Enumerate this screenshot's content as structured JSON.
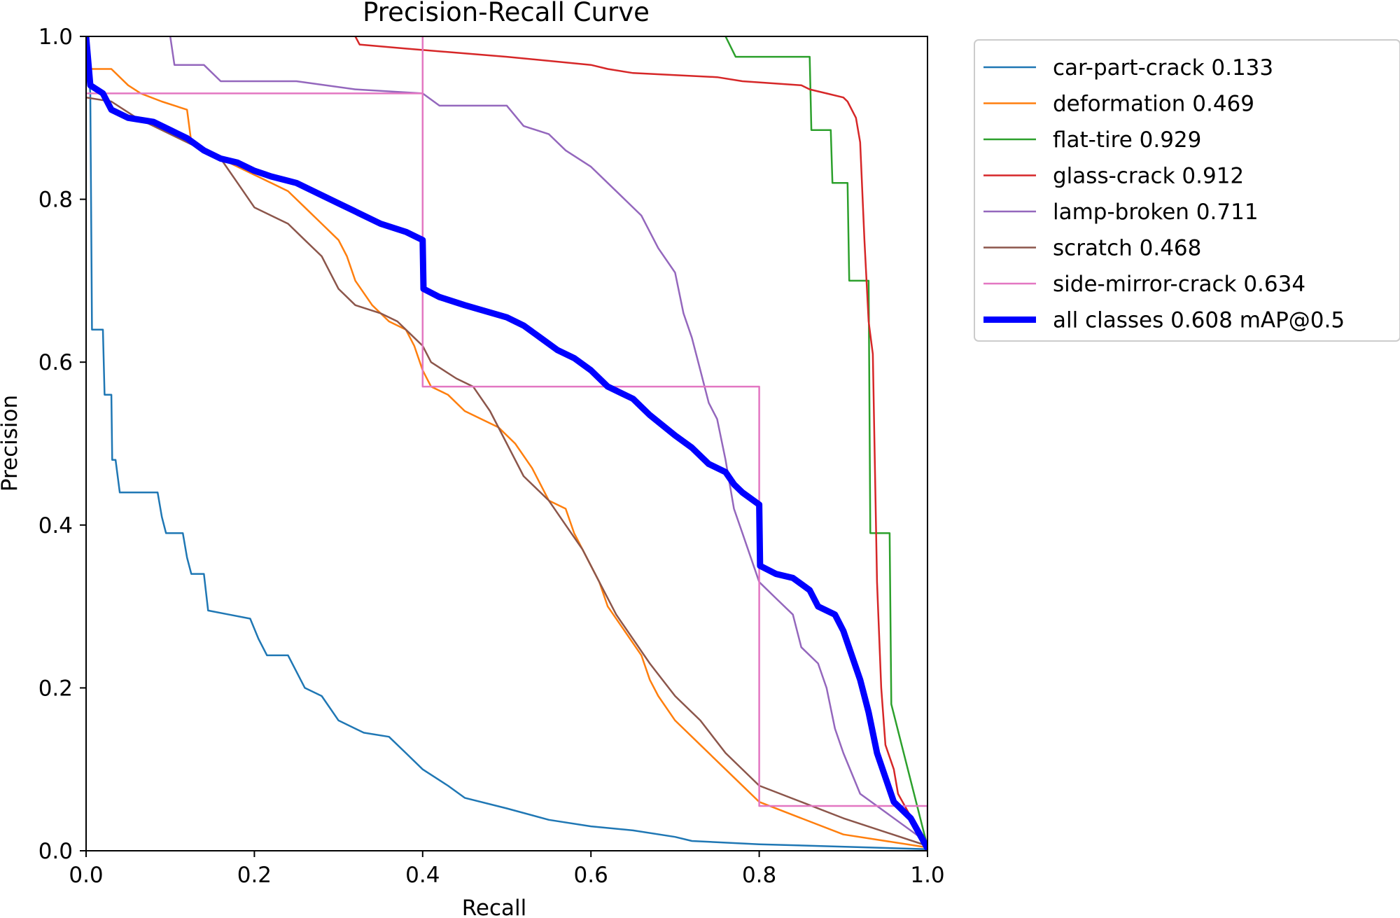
{
  "chart_data": {
    "type": "line",
    "title": "Precision-Recall Curve",
    "xlabel": "Recall",
    "ylabel": "Precision",
    "xlim": [
      0,
      1
    ],
    "ylim": [
      0,
      1
    ],
    "xticks": [
      "0.0",
      "0.2",
      "0.4",
      "0.6",
      "0.8",
      "1.0"
    ],
    "yticks": [
      "0.0",
      "0.2",
      "0.4",
      "0.6",
      "0.8",
      "1.0"
    ],
    "grid": false,
    "legend_position": "outside-top-right",
    "series": [
      {
        "name": "car-part-crack",
        "legend_label": "car-part-crack 0.133",
        "color": "#1f77b4",
        "width": "thin",
        "points": [
          [
            0.0,
            1.0
          ],
          [
            0.005,
            0.93
          ],
          [
            0.007,
            0.64
          ],
          [
            0.02,
            0.64
          ],
          [
            0.022,
            0.56
          ],
          [
            0.03,
            0.56
          ],
          [
            0.031,
            0.48
          ],
          [
            0.035,
            0.48
          ],
          [
            0.04,
            0.44
          ],
          [
            0.085,
            0.44
          ],
          [
            0.09,
            0.41
          ],
          [
            0.095,
            0.39
          ],
          [
            0.115,
            0.39
          ],
          [
            0.12,
            0.36
          ],
          [
            0.125,
            0.34
          ],
          [
            0.14,
            0.34
          ],
          [
            0.145,
            0.295
          ],
          [
            0.17,
            0.29
          ],
          [
            0.195,
            0.285
          ],
          [
            0.205,
            0.26
          ],
          [
            0.215,
            0.24
          ],
          [
            0.24,
            0.24
          ],
          [
            0.26,
            0.2
          ],
          [
            0.28,
            0.19
          ],
          [
            0.3,
            0.16
          ],
          [
            0.33,
            0.145
          ],
          [
            0.36,
            0.14
          ],
          [
            0.38,
            0.12
          ],
          [
            0.4,
            0.1
          ],
          [
            0.43,
            0.08
          ],
          [
            0.45,
            0.065
          ],
          [
            0.5,
            0.052
          ],
          [
            0.55,
            0.038
          ],
          [
            0.6,
            0.03
          ],
          [
            0.65,
            0.025
          ],
          [
            0.7,
            0.017
          ],
          [
            0.72,
            0.012
          ],
          [
            0.8,
            0.008
          ],
          [
            1.0,
            0.002
          ]
        ]
      },
      {
        "name": "deformation",
        "legend_label": "deformation 0.469",
        "color": "#ff7f0e",
        "width": "thin",
        "points": [
          [
            0.0,
            0.96
          ],
          [
            0.03,
            0.96
          ],
          [
            0.05,
            0.94
          ],
          [
            0.065,
            0.93
          ],
          [
            0.09,
            0.92
          ],
          [
            0.12,
            0.91
          ],
          [
            0.125,
            0.87
          ],
          [
            0.14,
            0.86
          ],
          [
            0.18,
            0.84
          ],
          [
            0.2,
            0.83
          ],
          [
            0.22,
            0.82
          ],
          [
            0.24,
            0.81
          ],
          [
            0.26,
            0.79
          ],
          [
            0.28,
            0.77
          ],
          [
            0.3,
            0.75
          ],
          [
            0.31,
            0.73
          ],
          [
            0.32,
            0.7
          ],
          [
            0.34,
            0.67
          ],
          [
            0.36,
            0.65
          ],
          [
            0.38,
            0.64
          ],
          [
            0.39,
            0.62
          ],
          [
            0.4,
            0.59
          ],
          [
            0.41,
            0.57
          ],
          [
            0.43,
            0.56
          ],
          [
            0.45,
            0.54
          ],
          [
            0.47,
            0.53
          ],
          [
            0.49,
            0.52
          ],
          [
            0.51,
            0.5
          ],
          [
            0.53,
            0.47
          ],
          [
            0.55,
            0.43
          ],
          [
            0.57,
            0.42
          ],
          [
            0.58,
            0.39
          ],
          [
            0.6,
            0.35
          ],
          [
            0.61,
            0.33
          ],
          [
            0.62,
            0.3
          ],
          [
            0.64,
            0.27
          ],
          [
            0.66,
            0.24
          ],
          [
            0.67,
            0.21
          ],
          [
            0.68,
            0.19
          ],
          [
            0.7,
            0.16
          ],
          [
            0.73,
            0.13
          ],
          [
            0.76,
            0.1
          ],
          [
            0.8,
            0.06
          ],
          [
            0.85,
            0.04
          ],
          [
            0.9,
            0.02
          ],
          [
            1.0,
            0.004
          ]
        ]
      },
      {
        "name": "flat-tire",
        "legend_label": "flat-tire 0.929",
        "color": "#2ca02c",
        "width": "thin",
        "points": [
          [
            0.76,
            1.0
          ],
          [
            0.772,
            0.975
          ],
          [
            0.86,
            0.975
          ],
          [
            0.862,
            0.885
          ],
          [
            0.885,
            0.885
          ],
          [
            0.887,
            0.82
          ],
          [
            0.905,
            0.82
          ],
          [
            0.907,
            0.7
          ],
          [
            0.93,
            0.7
          ],
          [
            0.932,
            0.39
          ],
          [
            0.955,
            0.39
          ],
          [
            0.957,
            0.18
          ],
          [
            1.0,
            0.005
          ]
        ]
      },
      {
        "name": "glass-crack",
        "legend_label": "glass-crack 0.912",
        "color": "#d62728",
        "width": "thin",
        "points": [
          [
            0.32,
            1.0
          ],
          [
            0.325,
            0.99
          ],
          [
            0.38,
            0.985
          ],
          [
            0.44,
            0.98
          ],
          [
            0.5,
            0.975
          ],
          [
            0.6,
            0.965
          ],
          [
            0.62,
            0.96
          ],
          [
            0.65,
            0.955
          ],
          [
            0.75,
            0.95
          ],
          [
            0.78,
            0.945
          ],
          [
            0.85,
            0.94
          ],
          [
            0.86,
            0.935
          ],
          [
            0.88,
            0.93
          ],
          [
            0.9,
            0.925
          ],
          [
            0.905,
            0.92
          ],
          [
            0.915,
            0.9
          ],
          [
            0.92,
            0.87
          ],
          [
            0.925,
            0.75
          ],
          [
            0.93,
            0.65
          ],
          [
            0.935,
            0.61
          ],
          [
            0.94,
            0.33
          ],
          [
            0.945,
            0.2
          ],
          [
            0.95,
            0.13
          ],
          [
            0.96,
            0.1
          ],
          [
            0.965,
            0.07
          ],
          [
            1.0,
            0.005
          ]
        ]
      },
      {
        "name": "lamp-broken",
        "legend_label": "lamp-broken 0.711",
        "color": "#9467bd",
        "width": "thin",
        "points": [
          [
            0.1,
            1.0
          ],
          [
            0.105,
            0.965
          ],
          [
            0.14,
            0.965
          ],
          [
            0.16,
            0.945
          ],
          [
            0.25,
            0.945
          ],
          [
            0.32,
            0.935
          ],
          [
            0.4,
            0.93
          ],
          [
            0.42,
            0.915
          ],
          [
            0.47,
            0.915
          ],
          [
            0.5,
            0.915
          ],
          [
            0.52,
            0.89
          ],
          [
            0.55,
            0.88
          ],
          [
            0.57,
            0.86
          ],
          [
            0.6,
            0.84
          ],
          [
            0.62,
            0.82
          ],
          [
            0.64,
            0.8
          ],
          [
            0.66,
            0.78
          ],
          [
            0.68,
            0.74
          ],
          [
            0.7,
            0.71
          ],
          [
            0.71,
            0.66
          ],
          [
            0.72,
            0.63
          ],
          [
            0.73,
            0.59
          ],
          [
            0.74,
            0.55
          ],
          [
            0.75,
            0.53
          ],
          [
            0.76,
            0.48
          ],
          [
            0.77,
            0.42
          ],
          [
            0.78,
            0.39
          ],
          [
            0.79,
            0.36
          ],
          [
            0.8,
            0.33
          ],
          [
            0.82,
            0.31
          ],
          [
            0.84,
            0.29
          ],
          [
            0.85,
            0.25
          ],
          [
            0.87,
            0.23
          ],
          [
            0.88,
            0.2
          ],
          [
            0.89,
            0.15
          ],
          [
            0.9,
            0.12
          ],
          [
            0.92,
            0.07
          ],
          [
            1.0,
            0.01
          ]
        ]
      },
      {
        "name": "scratch",
        "legend_label": "scratch 0.468",
        "color": "#8c564b",
        "width": "thin",
        "points": [
          [
            0.0,
            0.925
          ],
          [
            0.03,
            0.92
          ],
          [
            0.06,
            0.9
          ],
          [
            0.1,
            0.88
          ],
          [
            0.12,
            0.87
          ],
          [
            0.14,
            0.86
          ],
          [
            0.16,
            0.85
          ],
          [
            0.18,
            0.82
          ],
          [
            0.2,
            0.79
          ],
          [
            0.22,
            0.78
          ],
          [
            0.24,
            0.77
          ],
          [
            0.26,
            0.75
          ],
          [
            0.28,
            0.73
          ],
          [
            0.29,
            0.71
          ],
          [
            0.3,
            0.69
          ],
          [
            0.32,
            0.67
          ],
          [
            0.35,
            0.66
          ],
          [
            0.37,
            0.65
          ],
          [
            0.39,
            0.63
          ],
          [
            0.4,
            0.62
          ],
          [
            0.41,
            0.6
          ],
          [
            0.44,
            0.58
          ],
          [
            0.46,
            0.57
          ],
          [
            0.48,
            0.54
          ],
          [
            0.5,
            0.5
          ],
          [
            0.52,
            0.46
          ],
          [
            0.55,
            0.43
          ],
          [
            0.57,
            0.4
          ],
          [
            0.59,
            0.37
          ],
          [
            0.61,
            0.33
          ],
          [
            0.63,
            0.29
          ],
          [
            0.65,
            0.26
          ],
          [
            0.67,
            0.23
          ],
          [
            0.7,
            0.19
          ],
          [
            0.73,
            0.16
          ],
          [
            0.76,
            0.12
          ],
          [
            0.8,
            0.08
          ],
          [
            0.85,
            0.06
          ],
          [
            0.9,
            0.04
          ],
          [
            1.0,
            0.006
          ]
        ]
      },
      {
        "name": "side-mirror-crack",
        "legend_label": "side-mirror-crack 0.634",
        "color": "#e377c2",
        "width": "thin",
        "points": [
          [
            0.0,
            0.93
          ],
          [
            0.4,
            0.93
          ],
          [
            0.4,
            1.0
          ],
          [
            0.4,
            0.57
          ],
          [
            0.8,
            0.57
          ],
          [
            0.8,
            0.055
          ],
          [
            1.0,
            0.055
          ],
          [
            1.0,
            0.0
          ]
        ]
      },
      {
        "name": "all classes",
        "legend_label": "all classes 0.608 mAP@0.5",
        "color": "#0000ff",
        "width": "thick",
        "points": [
          [
            0.0,
            1.0
          ],
          [
            0.005,
            0.94
          ],
          [
            0.02,
            0.93
          ],
          [
            0.03,
            0.91
          ],
          [
            0.05,
            0.9
          ],
          [
            0.08,
            0.895
          ],
          [
            0.1,
            0.885
          ],
          [
            0.12,
            0.875
          ],
          [
            0.14,
            0.86
          ],
          [
            0.16,
            0.85
          ],
          [
            0.18,
            0.845
          ],
          [
            0.2,
            0.835
          ],
          [
            0.22,
            0.828
          ],
          [
            0.25,
            0.82
          ],
          [
            0.28,
            0.805
          ],
          [
            0.3,
            0.795
          ],
          [
            0.32,
            0.785
          ],
          [
            0.35,
            0.77
          ],
          [
            0.38,
            0.76
          ],
          [
            0.4,
            0.75
          ],
          [
            0.401,
            0.69
          ],
          [
            0.42,
            0.68
          ],
          [
            0.45,
            0.67
          ],
          [
            0.5,
            0.655
          ],
          [
            0.52,
            0.645
          ],
          [
            0.54,
            0.63
          ],
          [
            0.56,
            0.615
          ],
          [
            0.58,
            0.605
          ],
          [
            0.6,
            0.59
          ],
          [
            0.62,
            0.57
          ],
          [
            0.65,
            0.555
          ],
          [
            0.67,
            0.535
          ],
          [
            0.7,
            0.51
          ],
          [
            0.72,
            0.495
          ],
          [
            0.74,
            0.475
          ],
          [
            0.76,
            0.465
          ],
          [
            0.77,
            0.45
          ],
          [
            0.78,
            0.44
          ],
          [
            0.8,
            0.425
          ],
          [
            0.801,
            0.35
          ],
          [
            0.82,
            0.34
          ],
          [
            0.84,
            0.335
          ],
          [
            0.86,
            0.32
          ],
          [
            0.87,
            0.3
          ],
          [
            0.89,
            0.29
          ],
          [
            0.9,
            0.27
          ],
          [
            0.91,
            0.24
          ],
          [
            0.92,
            0.21
          ],
          [
            0.93,
            0.17
          ],
          [
            0.94,
            0.12
          ],
          [
            0.95,
            0.09
          ],
          [
            0.96,
            0.06
          ],
          [
            0.98,
            0.04
          ],
          [
            1.0,
            0.003
          ]
        ]
      }
    ]
  }
}
